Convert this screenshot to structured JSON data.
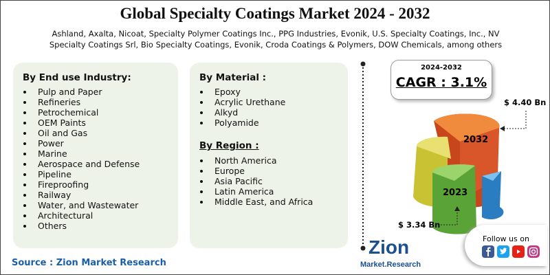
{
  "header": {
    "title": "Global Specialty Coatings Market 2024 - 2032",
    "subtitle": "Ashland, Axalta, Nicoat, Specialty Polymer Coatings Inc., PPG Industries, Evonik, U.S. Specialty Coatings, Inc., NV Specialty Coatings Srl, Bio Specialty Coatings, Evonik, Croda Coatings & Polymers, DOW Chemicals, among others"
  },
  "end_use": {
    "heading": "By End use Industry:",
    "items": [
      "Pulp and Paper",
      "Refineries",
      "Petrochemical",
      "OEM Paints",
      "Oil and Gas",
      "Power",
      "Marine",
      "Aerospace and Defense",
      "Pipeline",
      "Fireproofing",
      "Railway",
      "Water, and Wastewater",
      "Architectural",
      "Others"
    ]
  },
  "material": {
    "heading": "By Material :",
    "items": [
      "Epoxy",
      "Acrylic Urethane",
      "Alkyd",
      "Polyamide"
    ]
  },
  "region": {
    "heading": "By Region :",
    "items": [
      "North America",
      "Europe",
      "Asia Pacific",
      "Latin America",
      "Middle East, and Africa"
    ]
  },
  "cagr": {
    "period": "2024-2032",
    "label": "CAGR : 3.1%"
  },
  "pie": {
    "label_2032": "2032",
    "label_2023": "2023",
    "value_2032": "$ 4.40 Bn",
    "value_2023": "$ 3.34 Bn"
  },
  "social": {
    "label": "Follow us on"
  },
  "logo": {
    "name": "Zion",
    "sub": "Market.Research"
  },
  "source": "Source : Zion Market Research"
}
